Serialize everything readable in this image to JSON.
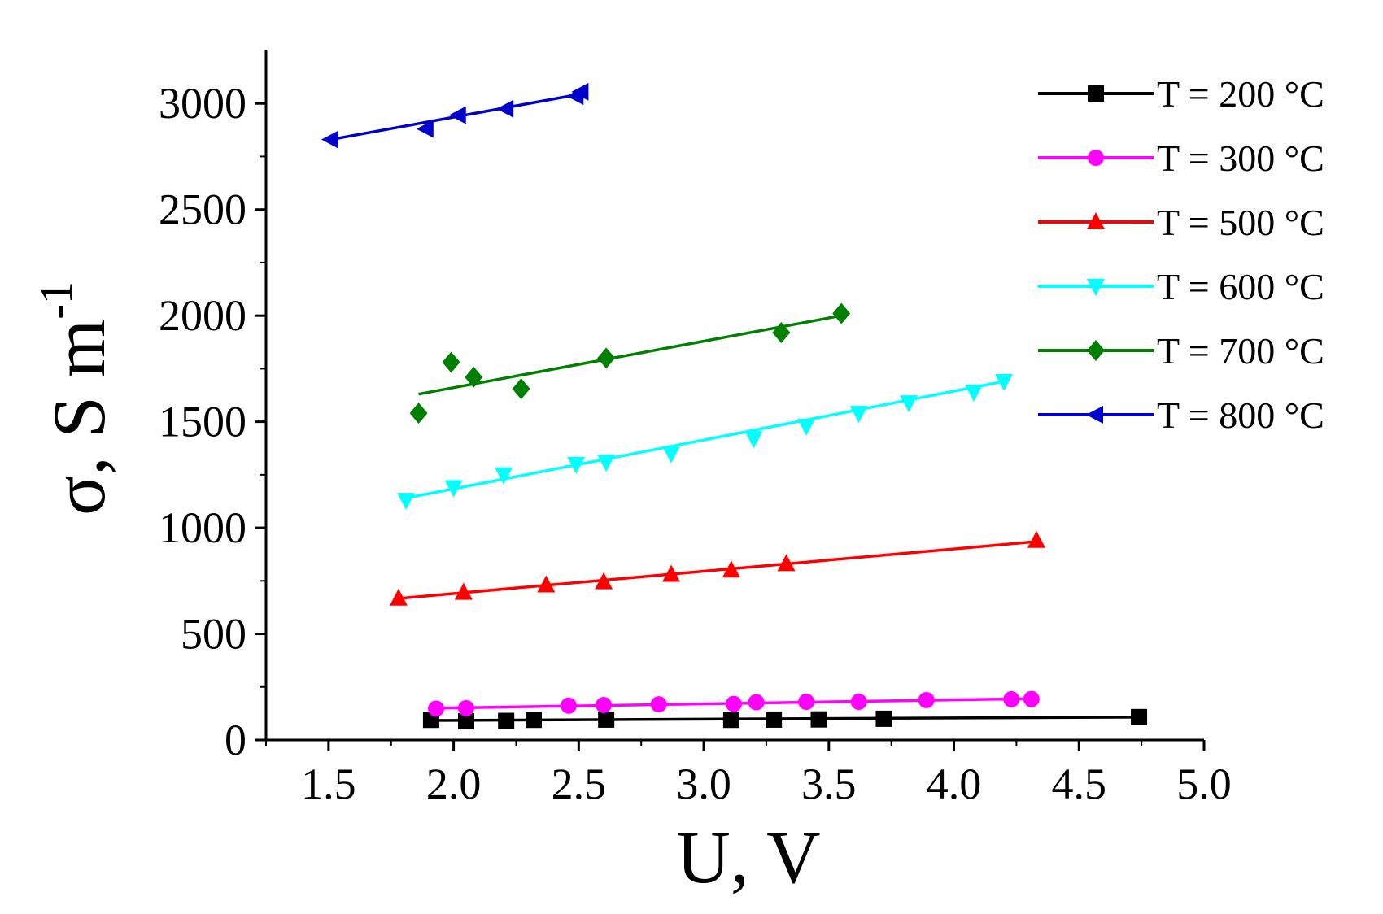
{
  "chart_data": {
    "type": "scatter",
    "title": "",
    "xlabel": "U, V",
    "ylabel_main": "σ, S m",
    "ylabel_sup": "-1",
    "xlim": [
      1.25,
      5.0
    ],
    "ylim": [
      0,
      3250
    ],
    "xticks": [
      1.5,
      2.0,
      2.5,
      3.0,
      3.5,
      4.0,
      4.5,
      5.0
    ],
    "xtick_labels": [
      "1.5",
      "2.0",
      "2.5",
      "3.0",
      "3.5",
      "4.0",
      "4.5",
      "5.0"
    ],
    "yticks": [
      0,
      500,
      1000,
      1500,
      2000,
      2500,
      3000
    ],
    "ytick_labels": [
      "0",
      "500",
      "1000",
      "1500",
      "2000",
      "2500",
      "3000"
    ],
    "grid": false,
    "legend_position": "top-right",
    "series": [
      {
        "name": "T = 200 °C",
        "color": "#000000",
        "marker": "square",
        "x": [
          1.91,
          2.05,
          2.21,
          2.32,
          2.61,
          3.11,
          3.28,
          3.46,
          3.72,
          4.74
        ],
        "y": [
          95,
          88,
          90,
          95,
          96,
          95,
          96,
          97,
          100,
          108
        ],
        "fit": [
          [
            1.91,
            92
          ],
          [
            4.74,
            108
          ]
        ]
      },
      {
        "name": "T = 300 °C",
        "color": "#ff00ff",
        "marker": "circle",
        "x": [
          1.93,
          2.05,
          2.46,
          2.6,
          2.82,
          3.12,
          3.21,
          3.41,
          3.62,
          3.89,
          4.23,
          4.31
        ],
        "y": [
          148,
          150,
          162,
          165,
          168,
          170,
          178,
          180,
          180,
          188,
          192,
          193
        ],
        "fit": [
          [
            1.93,
            150
          ],
          [
            4.31,
            195
          ]
        ]
      },
      {
        "name": "T = 500 °C",
        "color": "#ff0000",
        "marker": "triangle-up",
        "x": [
          1.78,
          2.04,
          2.37,
          2.6,
          2.87,
          3.11,
          3.33,
          4.33
        ],
        "y": [
          668,
          695,
          730,
          745,
          780,
          800,
          830,
          940
        ],
        "fit": [
          [
            1.78,
            667
          ],
          [
            4.33,
            935
          ]
        ]
      },
      {
        "name": "T = 600 °C",
        "color": "#00ffff",
        "marker": "triangle-down",
        "x": [
          1.81,
          2.0,
          2.2,
          2.49,
          2.61,
          2.87,
          3.2,
          3.41,
          3.62,
          3.82,
          4.08,
          4.2
        ],
        "y": [
          1130,
          1190,
          1250,
          1300,
          1310,
          1350,
          1420,
          1480,
          1540,
          1590,
          1640,
          1690
        ],
        "fit": [
          [
            1.81,
            1140
          ],
          [
            4.2,
            1690
          ]
        ]
      },
      {
        "name": "T = 700 °C",
        "color": "#008000",
        "marker": "diamond",
        "x": [
          1.86,
          1.99,
          2.08,
          2.27,
          2.61,
          3.31,
          3.55
        ],
        "y": [
          1540,
          1780,
          1710,
          1655,
          1800,
          1920,
          2010
        ],
        "fit": [
          [
            1.86,
            1630
          ],
          [
            3.55,
            2000
          ]
        ]
      },
      {
        "name": "T = 800 °C",
        "color": "#0000cc",
        "marker": "triangle-left",
        "x": [
          1.51,
          1.89,
          2.02,
          2.21,
          2.49,
          2.51
        ],
        "y": [
          2830,
          2880,
          2945,
          2975,
          3035,
          3055
        ],
        "fit": [
          [
            1.51,
            2830
          ],
          [
            2.51,
            3045
          ]
        ]
      }
    ]
  }
}
